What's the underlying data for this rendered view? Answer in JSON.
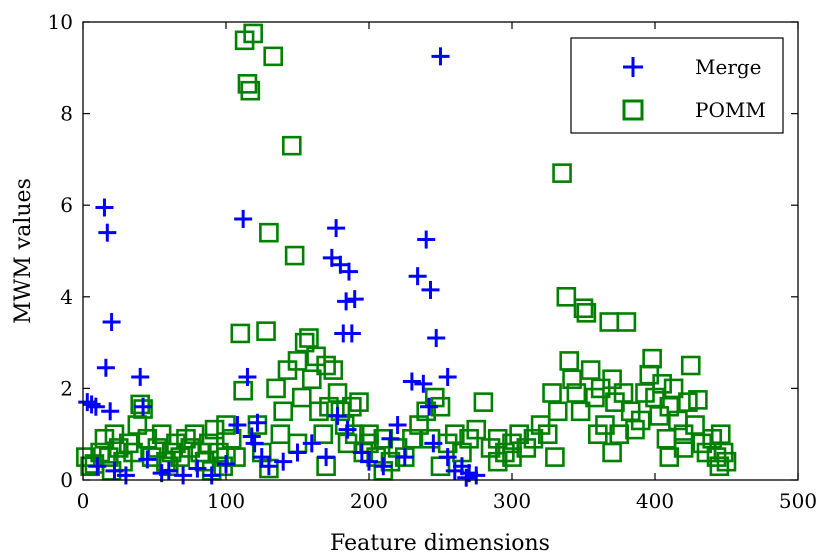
{
  "chart_data": {
    "type": "scatter",
    "xlabel": "Feature dimensions",
    "ylabel": "MWM values",
    "xlim": [
      0,
      500
    ],
    "ylim": [
      0,
      10
    ],
    "xticks": [
      "0",
      "100",
      "200",
      "300",
      "400",
      "500"
    ],
    "yticks": [
      "0",
      "2",
      "4",
      "6",
      "8",
      "10"
    ],
    "grid": false,
    "legend_position": "top-right",
    "series": [
      {
        "name": "Merge",
        "marker": "plus",
        "color": "#0000ff",
        "points": [
          [
            3,
            1.7
          ],
          [
            6,
            1.65
          ],
          [
            9,
            1.6
          ],
          [
            15,
            5.95
          ],
          [
            17,
            5.4
          ],
          [
            20,
            3.45
          ],
          [
            16,
            2.45
          ],
          [
            19,
            1.5
          ],
          [
            10,
            0.3
          ],
          [
            22,
            0.2
          ],
          [
            30,
            0.1
          ],
          [
            40,
            2.25
          ],
          [
            42,
            1.6
          ],
          [
            45,
            0.45
          ],
          [
            55,
            0.15
          ],
          [
            60,
            0.2
          ],
          [
            70,
            0.1
          ],
          [
            80,
            0.25
          ],
          [
            90,
            0.1
          ],
          [
            100,
            0.35
          ],
          [
            108,
            1.2
          ],
          [
            112,
            5.7
          ],
          [
            115,
            2.25
          ],
          [
            118,
            0.95
          ],
          [
            120,
            0.8
          ],
          [
            122,
            1.25
          ],
          [
            125,
            0.5
          ],
          [
            130,
            0.3
          ],
          [
            140,
            0.4
          ],
          [
            150,
            0.6
          ],
          [
            160,
            0.8
          ],
          [
            170,
            0.5
          ],
          [
            174,
            4.85
          ],
          [
            177,
            5.5
          ],
          [
            180,
            4.7
          ],
          [
            182,
            3.2
          ],
          [
            184,
            3.9
          ],
          [
            186,
            4.55
          ],
          [
            188,
            3.2
          ],
          [
            190,
            3.95
          ],
          [
            178,
            1.4
          ],
          [
            185,
            1.1
          ],
          [
            195,
            0.6
          ],
          [
            200,
            0.4
          ],
          [
            210,
            0.3
          ],
          [
            215,
            0.9
          ],
          [
            220,
            1.2
          ],
          [
            225,
            0.5
          ],
          [
            230,
            2.15
          ],
          [
            234,
            4.45
          ],
          [
            240,
            5.25
          ],
          [
            243,
            4.15
          ],
          [
            247,
            3.1
          ],
          [
            250,
            9.25
          ],
          [
            255,
            2.25
          ],
          [
            238,
            2.1
          ],
          [
            242,
            1.6
          ],
          [
            245,
            0.8
          ],
          [
            255,
            0.5
          ],
          [
            260,
            0.2
          ],
          [
            265,
            0.3
          ],
          [
            270,
            0.15
          ],
          [
            275,
            0.1
          ],
          [
            268,
            0.05
          ]
        ]
      },
      {
        "name": "POMM",
        "marker": "square",
        "color": "#008000",
        "points": [
          [
            2,
            0.5
          ],
          [
            5,
            0.3
          ],
          [
            8,
            0.35
          ],
          [
            12,
            0.6
          ],
          [
            15,
            0.9
          ],
          [
            18,
            0.5
          ],
          [
            22,
            1.0
          ],
          [
            25,
            0.7
          ],
          [
            28,
            0.4
          ],
          [
            32,
            0.8
          ],
          [
            35,
            0.6
          ],
          [
            38,
            1.2
          ],
          [
            40,
            1.65
          ],
          [
            42,
            1.55
          ],
          [
            45,
            0.9
          ],
          [
            48,
            0.5
          ],
          [
            52,
            0.7
          ],
          [
            55,
            1.0
          ],
          [
            58,
            0.4
          ],
          [
            62,
            0.6
          ],
          [
            65,
            0.8
          ],
          [
            68,
            0.5
          ],
          [
            72,
            0.9
          ],
          [
            75,
            0.7
          ],
          [
            78,
            1.0
          ],
          [
            82,
            0.6
          ],
          [
            85,
            0.4
          ],
          [
            88,
            0.8
          ],
          [
            92,
            1.1
          ],
          [
            95,
            0.6
          ],
          [
            98,
            0.3
          ],
          [
            100,
            1.2
          ],
          [
            104,
            0.9
          ],
          [
            107,
            0.5
          ],
          [
            110,
            3.2
          ],
          [
            112,
            1.95
          ],
          [
            113,
            9.6
          ],
          [
            115,
            8.65
          ],
          [
            117,
            8.5
          ],
          [
            119,
            9.75
          ],
          [
            122,
            1.2
          ],
          [
            125,
            0.6
          ],
          [
            128,
            3.25
          ],
          [
            130,
            5.4
          ],
          [
            133,
            9.25
          ],
          [
            135,
            2.0
          ],
          [
            138,
            1.0
          ],
          [
            140,
            1.5
          ],
          [
            143,
            2.4
          ],
          [
            146,
            7.3
          ],
          [
            148,
            4.9
          ],
          [
            150,
            2.6
          ],
          [
            153,
            1.8
          ],
          [
            155,
            3.0
          ],
          [
            158,
            3.1
          ],
          [
            160,
            2.2
          ],
          [
            163,
            2.7
          ],
          [
            165,
            1.5
          ],
          [
            168,
            1.0
          ],
          [
            170,
            2.5
          ],
          [
            172,
            1.6
          ],
          [
            175,
            2.4
          ],
          [
            178,
            1.9
          ],
          [
            180,
            1.5
          ],
          [
            183,
            1.2
          ],
          [
            185,
            0.8
          ],
          [
            188,
            1.6
          ],
          [
            190,
            1.0
          ],
          [
            193,
            1.7
          ],
          [
            196,
            0.6
          ],
          [
            200,
            1.0
          ],
          [
            205,
            0.5
          ],
          [
            210,
            0.9
          ],
          [
            215,
            0.4
          ],
          [
            220,
            0.7
          ],
          [
            225,
            0.5
          ],
          [
            230,
            0.9
          ],
          [
            235,
            1.2
          ],
          [
            240,
            1.5
          ],
          [
            243,
            0.9
          ],
          [
            246,
            1.8
          ],
          [
            250,
            1.6
          ],
          [
            255,
            0.8
          ],
          [
            260,
            1.0
          ],
          [
            265,
            0.6
          ],
          [
            270,
            0.9
          ],
          [
            275,
            1.1
          ],
          [
            280,
            1.7
          ],
          [
            285,
            0.7
          ],
          [
            290,
            0.9
          ],
          [
            295,
            0.6
          ],
          [
            300,
            0.8
          ],
          [
            305,
            1.0
          ],
          [
            310,
            0.7
          ],
          [
            315,
            0.9
          ],
          [
            320,
            1.2
          ],
          [
            325,
            1.0
          ],
          [
            328,
            1.9
          ],
          [
            332,
            1.5
          ],
          [
            335,
            6.7
          ],
          [
            338,
            4.0
          ],
          [
            340,
            2.6
          ],
          [
            342,
            2.2
          ],
          [
            345,
            1.9
          ],
          [
            348,
            1.5
          ],
          [
            350,
            3.75
          ],
          [
            352,
            3.65
          ],
          [
            355,
            2.4
          ],
          [
            358,
            1.8
          ],
          [
            362,
            2.0
          ],
          [
            365,
            1.2
          ],
          [
            368,
            3.45
          ],
          [
            370,
            2.2
          ],
          [
            372,
            1.7
          ],
          [
            375,
            1.0
          ],
          [
            378,
            1.9
          ],
          [
            380,
            3.45
          ],
          [
            383,
            1.5
          ],
          [
            386,
            1.1
          ],
          [
            390,
            1.3
          ],
          [
            393,
            1.9
          ],
          [
            396,
            2.3
          ],
          [
            398,
            2.65
          ],
          [
            400,
            1.8
          ],
          [
            403,
            1.4
          ],
          [
            405,
            2.1
          ],
          [
            408,
            0.9
          ],
          [
            410,
            1.6
          ],
          [
            413,
            2.0
          ],
          [
            416,
            1.3
          ],
          [
            420,
            1.0
          ],
          [
            423,
            1.7
          ],
          [
            425,
            2.5
          ],
          [
            428,
            1.2
          ],
          [
            430,
            1.75
          ],
          [
            433,
            0.8
          ],
          [
            436,
            0.6
          ],
          [
            440,
            0.9
          ],
          [
            443,
            0.5
          ],
          [
            446,
            1.0
          ],
          [
            448,
            0.6
          ],
          [
            450,
            0.4
          ],
          [
            20,
            0.2
          ],
          [
            60,
            0.3
          ],
          [
            90,
            0.2
          ],
          [
            130,
            0.25
          ],
          [
            170,
            0.3
          ],
          [
            210,
            0.2
          ],
          [
            250,
            0.3
          ],
          [
            290,
            0.4
          ],
          [
            330,
            0.5
          ],
          [
            370,
            0.6
          ],
          [
            410,
            0.5
          ],
          [
            445,
            0.3
          ],
          [
            100,
            0.5
          ],
          [
            200,
            0.8
          ],
          [
            300,
            0.5
          ],
          [
            360,
            1.0
          ],
          [
            420,
            0.7
          ],
          [
            150,
            0.8
          ]
        ]
      }
    ]
  }
}
